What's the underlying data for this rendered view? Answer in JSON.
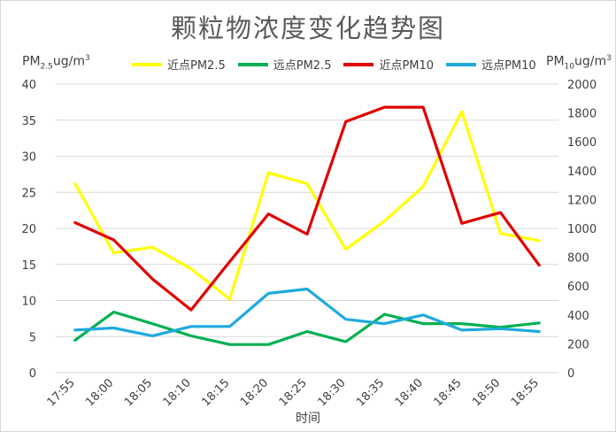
{
  "chart_data": {
    "type": "line",
    "title": "颗粒物浓度变化趋势图",
    "xlabel": "时间",
    "ylabel_left": {
      "prefix": "PM",
      "sub": "2.5",
      "suffix": "ug/m",
      "sup": "3"
    },
    "ylabel_right": {
      "prefix": "PM",
      "sub": "10",
      "suffix": "ug/m",
      "sup": "3"
    },
    "categories": [
      "17:55",
      "18:00",
      "18:05",
      "18:10",
      "18:15",
      "18:20",
      "18:25",
      "18:30",
      "18:35",
      "18:40",
      "18:45",
      "18:50",
      "18:55"
    ],
    "y_left": {
      "min": 0,
      "max": 40,
      "ticks": [
        "0",
        "5",
        "10",
        "15",
        "20",
        "25",
        "30",
        "35",
        "40"
      ]
    },
    "y_right": {
      "min": 0,
      "max": 2000,
      "ticks": [
        "0",
        "200",
        "400",
        "600",
        "800",
        "1000",
        "1200",
        "1400",
        "1600",
        "1800",
        "2000"
      ]
    },
    "grid": true,
    "legend_position": "top",
    "series": [
      {
        "name": "近点PM2.5",
        "axis": "left",
        "color": "#ffff00",
        "values": [
          26.2,
          16.6,
          17.4,
          14.4,
          10.2,
          27.7,
          26.2,
          17.1,
          21.0,
          25.8,
          36.2,
          19.3,
          18.3
        ]
      },
      {
        "name": "远点PM2.5",
        "axis": "left",
        "color": "#00b050",
        "values": [
          4.5,
          8.4,
          6.8,
          5.1,
          3.9,
          3.9,
          5.7,
          4.3,
          8.1,
          6.8,
          6.8,
          6.3,
          6.9
        ]
      },
      {
        "name": "近点PM10",
        "axis": "right",
        "color": "#e00000",
        "values": [
          1040,
          920,
          650,
          435,
          770,
          1100,
          960,
          1740,
          1840,
          1840,
          1035,
          1110,
          745
        ]
      },
      {
        "name": "远点PM10",
        "axis": "right",
        "color": "#1eaadc",
        "values": [
          295,
          310,
          255,
          320,
          320,
          550,
          580,
          370,
          340,
          400,
          295,
          305,
          285
        ]
      }
    ]
  }
}
